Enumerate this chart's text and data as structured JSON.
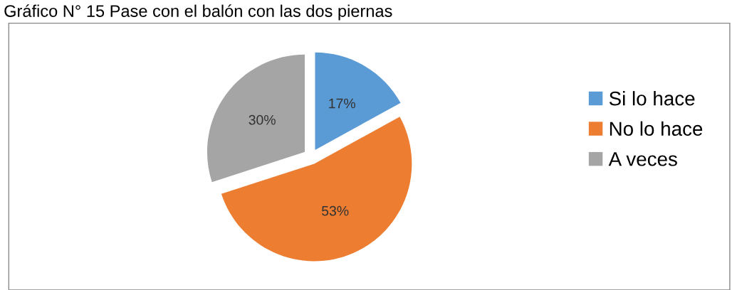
{
  "chart_data": {
    "type": "pie",
    "title": "Gráfico N° 15 Pase con el balón con las dos piernas",
    "categories": [
      "Si lo hace",
      "No lo hace",
      "A veces"
    ],
    "values": [
      17,
      53,
      30
    ],
    "colors": [
      "#5b9bd5",
      "#ed7d31",
      "#a5a5a5"
    ],
    "value_labels": [
      "17%",
      "53%",
      "30%"
    ],
    "legend": "right"
  }
}
